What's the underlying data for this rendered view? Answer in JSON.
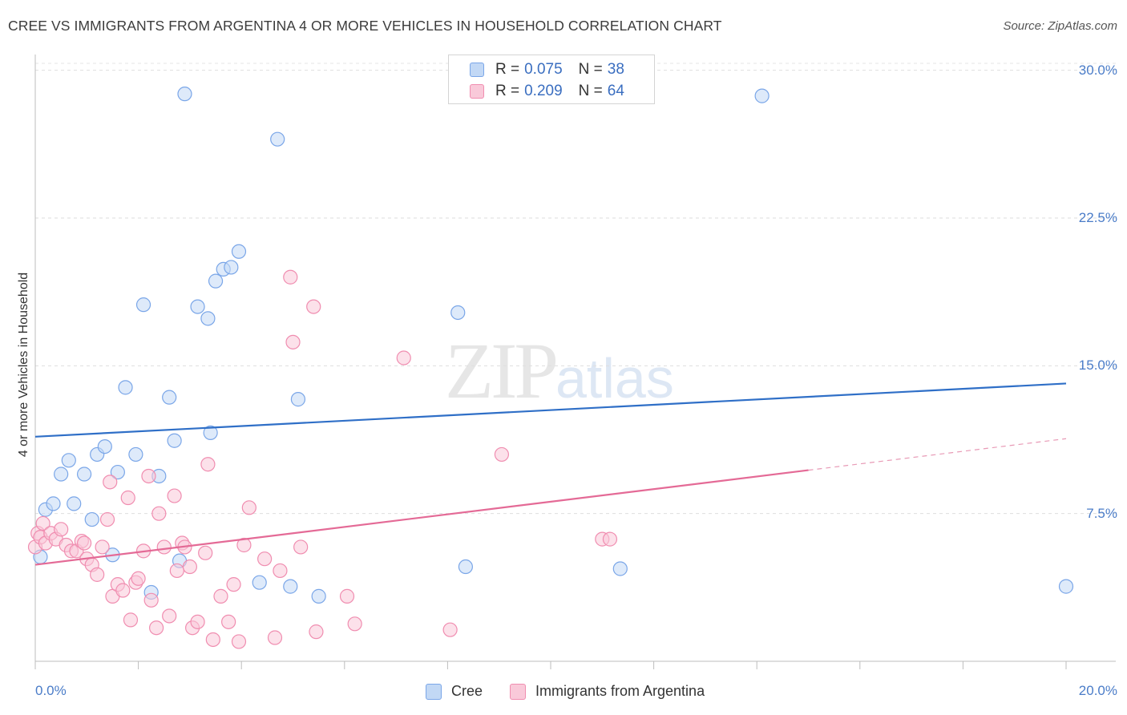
{
  "title": "CREE VS IMMIGRANTS FROM ARGENTINA 4 OR MORE VEHICLES IN HOUSEHOLD CORRELATION CHART",
  "source": "Source: ZipAtlas.com",
  "watermark": {
    "zip": "ZIP",
    "atlas": "atlas"
  },
  "legend_top": {
    "rows": [
      {
        "r_label": "R =",
        "r_value": "0.075",
        "n_label": "N =",
        "n_value": "38"
      },
      {
        "r_label": "R =",
        "r_value": "0.209",
        "n_label": "N =",
        "n_value": "64"
      }
    ]
  },
  "legend_bottom": [
    {
      "label": "Cree"
    },
    {
      "label": "Immigrants from Argentina"
    }
  ],
  "chart_data": {
    "type": "scatter",
    "title": "CREE VS IMMIGRANTS FROM ARGENTINA 4 OR MORE VEHICLES IN HOUSEHOLD CORRELATION CHART",
    "xlabel": "",
    "ylabel": "4 or more Vehicles in Household",
    "xlim": [
      0,
      20
    ],
    "ylim": [
      0,
      30.8
    ],
    "x_tick_labels": [
      "0.0%",
      "20.0%"
    ],
    "y_ticks": [
      7.5,
      15.0,
      22.5,
      30.0
    ],
    "y_tick_labels": [
      "7.5%",
      "15.0%",
      "22.5%",
      "30.0%"
    ],
    "grid": true,
    "legend_position": "top-center",
    "series": [
      {
        "name": "Cree",
        "color": "#7aa6e8",
        "fill": "#c2d8f5",
        "r": 0.075,
        "n": 38,
        "trend": {
          "x0": 0,
          "y0": 11.4,
          "x1": 20,
          "y1": 14.1
        },
        "points": [
          [
            0.1,
            5.3
          ],
          [
            0.2,
            7.7
          ],
          [
            0.35,
            8.0
          ],
          [
            0.5,
            9.5
          ],
          [
            0.65,
            10.2
          ],
          [
            0.75,
            8.0
          ],
          [
            0.95,
            9.5
          ],
          [
            1.1,
            7.2
          ],
          [
            1.2,
            10.5
          ],
          [
            1.35,
            10.9
          ],
          [
            1.5,
            5.4
          ],
          [
            1.6,
            9.6
          ],
          [
            1.75,
            13.9
          ],
          [
            1.95,
            10.5
          ],
          [
            2.1,
            18.1
          ],
          [
            2.25,
            3.5
          ],
          [
            2.4,
            9.4
          ],
          [
            2.6,
            13.4
          ],
          [
            2.7,
            11.2
          ],
          [
            2.8,
            5.1
          ],
          [
            2.9,
            28.8
          ],
          [
            3.15,
            18.0
          ],
          [
            3.35,
            17.4
          ],
          [
            3.4,
            11.6
          ],
          [
            3.5,
            19.3
          ],
          [
            3.65,
            19.9
          ],
          [
            3.8,
            20.0
          ],
          [
            3.95,
            20.8
          ],
          [
            4.35,
            4.0
          ],
          [
            4.7,
            26.5
          ],
          [
            4.95,
            3.8
          ],
          [
            5.1,
            13.3
          ],
          [
            5.5,
            3.3
          ],
          [
            8.2,
            17.7
          ],
          [
            8.35,
            4.8
          ],
          [
            11.35,
            4.7
          ],
          [
            14.1,
            28.7
          ],
          [
            20.0,
            3.8
          ]
        ]
      },
      {
        "name": "Immigrants from Argentina",
        "color": "#f08db0",
        "fill": "#f9c9d9",
        "r": 0.209,
        "n": 64,
        "trend": {
          "x0": 0,
          "y0": 4.9,
          "x1": 15.0,
          "y1": 9.7
        },
        "trend_dashed": {
          "x0": 15.0,
          "y0": 9.7,
          "x1": 20,
          "y1": 11.3
        },
        "points": [
          [
            0.0,
            5.8
          ],
          [
            0.05,
            6.5
          ],
          [
            0.1,
            6.3
          ],
          [
            0.15,
            7.0
          ],
          [
            0.2,
            6.0
          ],
          [
            0.3,
            6.5
          ],
          [
            0.4,
            6.2
          ],
          [
            0.5,
            6.7
          ],
          [
            0.6,
            5.9
          ],
          [
            0.7,
            5.6
          ],
          [
            0.8,
            5.6
          ],
          [
            0.9,
            6.1
          ],
          [
            0.95,
            6.0
          ],
          [
            1.0,
            5.2
          ],
          [
            1.1,
            4.9
          ],
          [
            1.2,
            4.4
          ],
          [
            1.3,
            5.8
          ],
          [
            1.4,
            7.2
          ],
          [
            1.45,
            9.1
          ],
          [
            1.5,
            3.3
          ],
          [
            1.6,
            3.9
          ],
          [
            1.7,
            3.6
          ],
          [
            1.8,
            8.3
          ],
          [
            1.85,
            2.1
          ],
          [
            1.95,
            4.0
          ],
          [
            2.0,
            4.2
          ],
          [
            2.1,
            5.6
          ],
          [
            2.2,
            9.4
          ],
          [
            2.25,
            3.1
          ],
          [
            2.35,
            1.7
          ],
          [
            2.4,
            7.5
          ],
          [
            2.5,
            5.8
          ],
          [
            2.6,
            2.3
          ],
          [
            2.7,
            8.4
          ],
          [
            2.75,
            4.6
          ],
          [
            2.85,
            6.0
          ],
          [
            2.9,
            5.8
          ],
          [
            3.0,
            4.8
          ],
          [
            3.05,
            1.7
          ],
          [
            3.15,
            2.0
          ],
          [
            3.3,
            5.5
          ],
          [
            3.35,
            10.0
          ],
          [
            3.45,
            1.1
          ],
          [
            3.6,
            3.3
          ],
          [
            3.75,
            2.0
          ],
          [
            3.85,
            3.9
          ],
          [
            3.95,
            1.0
          ],
          [
            4.05,
            5.9
          ],
          [
            4.15,
            7.8
          ],
          [
            4.45,
            5.2
          ],
          [
            4.65,
            1.2
          ],
          [
            4.75,
            4.6
          ],
          [
            4.95,
            19.5
          ],
          [
            5.0,
            16.2
          ],
          [
            5.15,
            5.8
          ],
          [
            5.4,
            18.0
          ],
          [
            5.45,
            1.5
          ],
          [
            6.05,
            3.3
          ],
          [
            6.2,
            1.9
          ],
          [
            7.15,
            15.4
          ],
          [
            8.05,
            1.6
          ],
          [
            9.05,
            10.5
          ],
          [
            11.0,
            6.2
          ],
          [
            11.15,
            6.2
          ]
        ]
      }
    ]
  }
}
